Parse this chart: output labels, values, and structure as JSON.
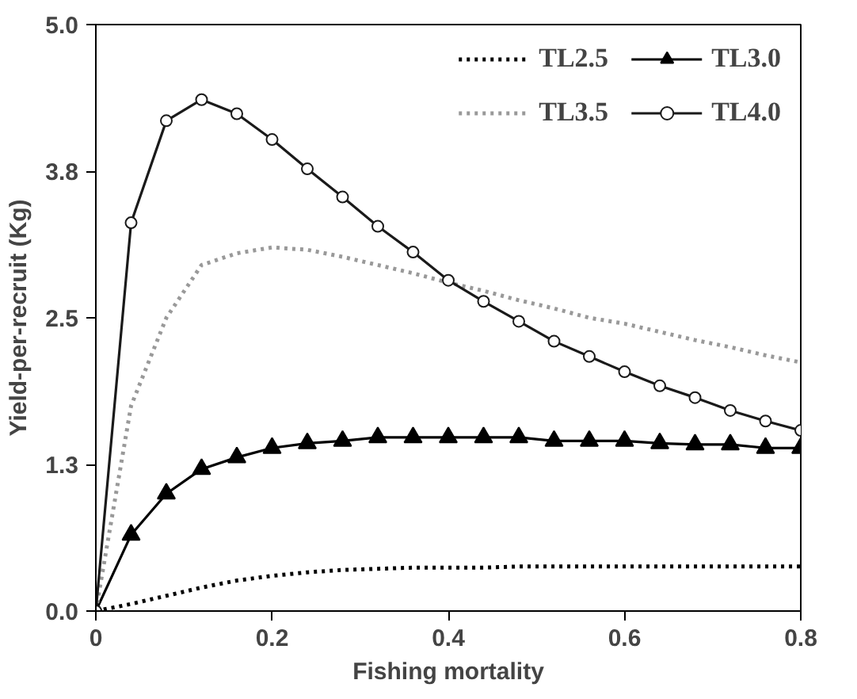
{
  "chart_data": {
    "type": "line",
    "xlabel": "Fishing mortality",
    "ylabel": "Yield-per-recruit (Kg)",
    "x": [
      0,
      0.04,
      0.08,
      0.12,
      0.16,
      0.2,
      0.24,
      0.28,
      0.32,
      0.36,
      0.4,
      0.44,
      0.48,
      0.52,
      0.56,
      0.6,
      0.64,
      0.68,
      0.72,
      0.76,
      0.8
    ],
    "series": [
      {
        "name": "TL2.5",
        "color": "#000000",
        "line_style": "dotted",
        "marker": "none",
        "values": [
          0,
          0.06,
          0.13,
          0.2,
          0.26,
          0.3,
          0.33,
          0.35,
          0.36,
          0.37,
          0.37,
          0.37,
          0.38,
          0.38,
          0.38,
          0.38,
          0.38,
          0.38,
          0.38,
          0.38,
          0.38
        ]
      },
      {
        "name": "TL3.0",
        "color": "#000000",
        "line_style": "solid",
        "marker": "triangle",
        "values": [
          0,
          0.65,
          1.0,
          1.21,
          1.31,
          1.39,
          1.43,
          1.45,
          1.48,
          1.48,
          1.48,
          1.48,
          1.48,
          1.45,
          1.45,
          1.45,
          1.43,
          1.42,
          1.42,
          1.39,
          1.39
        ]
      },
      {
        "name": "TL3.5",
        "color": "#999999",
        "line_style": "dotted",
        "marker": "none",
        "values": [
          0,
          1.75,
          2.5,
          2.95,
          3.05,
          3.1,
          3.08,
          3.02,
          2.95,
          2.88,
          2.8,
          2.73,
          2.65,
          2.58,
          2.5,
          2.45,
          2.38,
          2.31,
          2.25,
          2.18,
          2.12
        ]
      },
      {
        "name": "TL4.0",
        "color": "#1a1a1a",
        "line_style": "solid",
        "marker": "circle",
        "values": [
          0,
          3.31,
          4.18,
          4.36,
          4.24,
          4.02,
          3.77,
          3.53,
          3.28,
          3.06,
          2.82,
          2.64,
          2.47,
          2.3,
          2.17,
          2.04,
          1.92,
          1.82,
          1.71,
          1.62,
          1.54
        ]
      }
    ],
    "xlim": [
      0,
      0.8
    ],
    "ylim": [
      0,
      5.0
    ],
    "xticks": [
      0,
      0.2,
      0.4,
      0.6,
      0.8
    ],
    "yticks": [
      {
        "value": 0,
        "label": "0.0"
      },
      {
        "value": 1.25,
        "label": "1.3"
      },
      {
        "value": 2.5,
        "label": "2.5"
      },
      {
        "value": 3.75,
        "label": "3.8"
      },
      {
        "value": 5.0,
        "label": "5.0"
      }
    ],
    "grid": false,
    "legend": "top right"
  }
}
